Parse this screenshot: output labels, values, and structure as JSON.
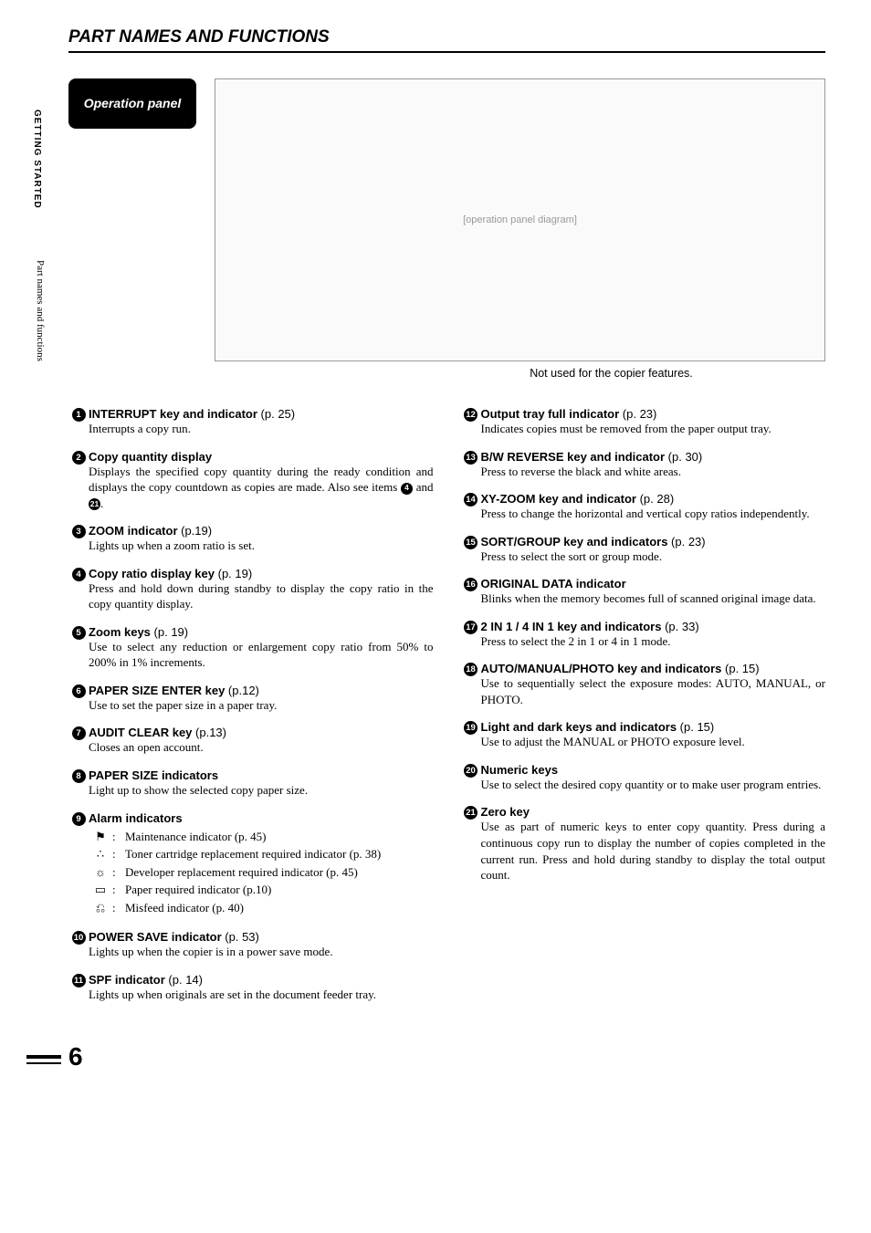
{
  "page": {
    "title": "PART NAMES AND FUNCTIONS",
    "side_tab": "GETTING STARTED",
    "side_text": "Part names and functions",
    "number": "6"
  },
  "op_panel": {
    "label": "Operation panel",
    "caption": "Not used for the copier features.",
    "diagram_note": "[operation panel diagram]"
  },
  "left": [
    {
      "n": "1",
      "title": "INTERRUPT key and indicator",
      "pref": "(p. 25)",
      "desc": "Interrupts a copy run."
    },
    {
      "n": "2",
      "title": "Copy quantity display",
      "pref": "",
      "desc_html": "Displays the specified copy quantity during the ready condition and displays the copy countdown as copies are made. Also see items <span class=\"inline-badge\">4</span> and <span class=\"inline-badge\">21</span>."
    },
    {
      "n": "3",
      "title": "ZOOM indicator",
      "pref": "(p.19)",
      "desc": "Lights up when a zoom ratio is set."
    },
    {
      "n": "4",
      "title": "Copy ratio display key",
      "pref": "(p. 19)",
      "desc": "Press and hold down during standby to display the copy ratio in the copy quantity display."
    },
    {
      "n": "5",
      "title": "Zoom keys",
      "pref": "(p. 19)",
      "desc": "Use to select any reduction or enlargement copy ratio from 50% to 200% in 1% increments."
    },
    {
      "n": "6",
      "title": "PAPER SIZE ENTER key",
      "pref": "(p.12)",
      "desc": "Use to set the paper size in a paper tray."
    },
    {
      "n": "7",
      "title": "AUDIT CLEAR key",
      "pref": "(p.13)",
      "desc": "Closes an open account."
    },
    {
      "n": "8",
      "title": "PAPER SIZE indicators",
      "pref": "",
      "desc": "Light up to show the selected copy paper size."
    },
    {
      "n": "9",
      "title": "Alarm indicators",
      "pref": "",
      "sublist": [
        {
          "icon": "⚑",
          "text": "Maintenance indicator (p. 45)"
        },
        {
          "icon": "∴",
          "text": "Toner cartridge replacement required indicator (p. 38)"
        },
        {
          "icon": "☼",
          "text": "Developer replacement required indicator (p. 45)"
        },
        {
          "icon": "▭",
          "text": "Paper required indicator (p.10)"
        },
        {
          "icon": "⎌",
          "text": "Misfeed indicator (p. 40)"
        }
      ]
    },
    {
      "n": "10",
      "title": "POWER SAVE indicator",
      "pref": "(p. 53)",
      "desc": "Lights up when the copier is in a power save mode."
    },
    {
      "n": "11",
      "title": "SPF indicator",
      "pref": "(p. 14)",
      "desc": "Lights up when originals are set in the document feeder tray."
    }
  ],
  "right": [
    {
      "n": "12",
      "title": "Output tray full indicator",
      "pref": "(p. 23)",
      "desc": "Indicates copies must be removed from the paper output tray."
    },
    {
      "n": "13",
      "title": "B/W REVERSE key and indicator",
      "pref": "(p. 30)",
      "desc": "Press to reverse the black and white areas."
    },
    {
      "n": "14",
      "title": "XY-ZOOM key and indicator",
      "pref": "(p. 28)",
      "desc": "Press to change the horizontal and vertical copy ratios independently."
    },
    {
      "n": "15",
      "title": "SORT/GROUP key and indicators",
      "pref": "(p. 23)",
      "desc": "Press to select the sort or group mode."
    },
    {
      "n": "16",
      "title": "ORIGINAL DATA indicator",
      "pref": "",
      "desc": "Blinks when the memory becomes full of scanned original image data."
    },
    {
      "n": "17",
      "title": "2 IN 1 / 4 IN 1 key and indicators",
      "pref": "(p. 33)",
      "desc": "Press to select the 2 in 1 or 4 in 1 mode."
    },
    {
      "n": "18",
      "title": "AUTO/MANUAL/PHOTO key and indicators",
      "pref": "(p. 15)",
      "desc": "Use to sequentially select the exposure modes: AUTO, MANUAL, or PHOTO."
    },
    {
      "n": "19",
      "title": "Light and dark keys and indicators",
      "pref": "(p. 15)",
      "desc": "Use to adjust the MANUAL or PHOTO exposure level."
    },
    {
      "n": "20",
      "title": "Numeric keys",
      "pref": "",
      "desc": "Use to select the desired copy quantity or to make user program entries."
    },
    {
      "n": "21",
      "title": "Zero key",
      "pref": "",
      "desc": "Use as part of numeric keys to enter copy quantity. Press during a continuous copy run to display the number of copies completed in the current run. Press and hold during standby to display the total output count."
    }
  ]
}
